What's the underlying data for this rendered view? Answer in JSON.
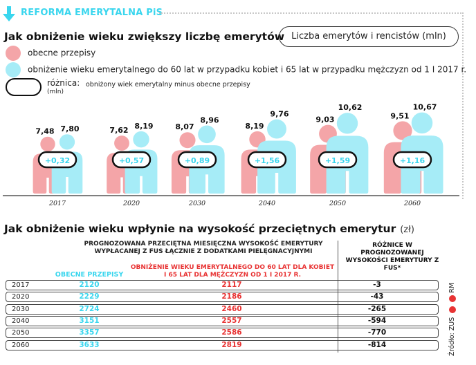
{
  "header": {
    "section_label": "REFORMA EMERYTALNA PiS"
  },
  "chart_data": [
    {
      "type": "bar",
      "title": "Jak obniżenie wieku zwiększy liczbę emerytów",
      "unit_label": "Liczba emerytów i rencistów (mln)",
      "categories": [
        "2017",
        "2020",
        "2030",
        "2040",
        "2050",
        "2060"
      ],
      "series": [
        {
          "name": "obecne przepisy",
          "color": "#f4a5a8",
          "values": [
            7.48,
            7.62,
            8.07,
            8.19,
            9.03,
            9.51
          ],
          "labels": [
            "7,48",
            "7,62",
            "8,07",
            "8,19",
            "9,03",
            "9,51"
          ]
        },
        {
          "name": "obniżenie wieku emerytalnego do 60 lat w przypadku kobiet i 65 lat w przypadku mężczyzn od 1 I 2017 r.",
          "color": "#a6ecf7",
          "values": [
            7.8,
            8.19,
            8.96,
            9.76,
            10.62,
            10.67
          ],
          "labels": [
            "7,80",
            "8,19",
            "8,96",
            "9,76",
            "10,62",
            "10,67"
          ]
        }
      ],
      "difference": {
        "name": "różnica:",
        "unit": "(mln)",
        "description": "obniżony wiek emerytalny minus obecne przepisy",
        "values": [
          0.32,
          0.57,
          0.89,
          1.56,
          1.59,
          1.16
        ],
        "labels": [
          "+0,32",
          "+0,57",
          "+0,89",
          "+1,56",
          "+1,59",
          "+1,16"
        ]
      }
    },
    {
      "type": "table",
      "title": "Jak obniżenie wieku wpłynie na wysokość przeciętnych emerytur",
      "unit": "(zł)",
      "group_header": "PROGNOZOWANA PRZECIĘTNA MIESIĘCZNA WYSOKOŚĆ EMERYTURY WYPŁACANEJ Z FUS ŁĄCZNIE Z DODATKAMI PIELĘGNACYJNYMI",
      "columns": {
        "current": "OBECNE PRZEPISY",
        "lowered": "OBNIŻENIE WIEKU EMERYTALNEGO DO 60 LAT DLA KOBIET I 65 LAT DLA MĘŻCZYZN OD 1 I 2017 R.",
        "diff": "RÓŻNICE W PROGNOZOWANEJ WYSOKOŚCI EMERYTURY Z FUS*"
      },
      "rows": [
        {
          "year": "2017",
          "current": "2120",
          "lowered": "2117",
          "diff": "-3"
        },
        {
          "year": "2020",
          "current": "2229",
          "lowered": "2186",
          "diff": "-43"
        },
        {
          "year": "2030",
          "current": "2724",
          "lowered": "2460",
          "diff": "-265"
        },
        {
          "year": "2040",
          "current": "3151",
          "lowered": "2557",
          "diff": "-594"
        },
        {
          "year": "2050",
          "current": "3357",
          "lowered": "2586",
          "diff": "-770"
        },
        {
          "year": "2060",
          "current": "3633",
          "lowered": "2819",
          "diff": "-814"
        }
      ]
    }
  ],
  "footer": {
    "source": "Źródło: ZUS",
    "credit": "RM"
  }
}
